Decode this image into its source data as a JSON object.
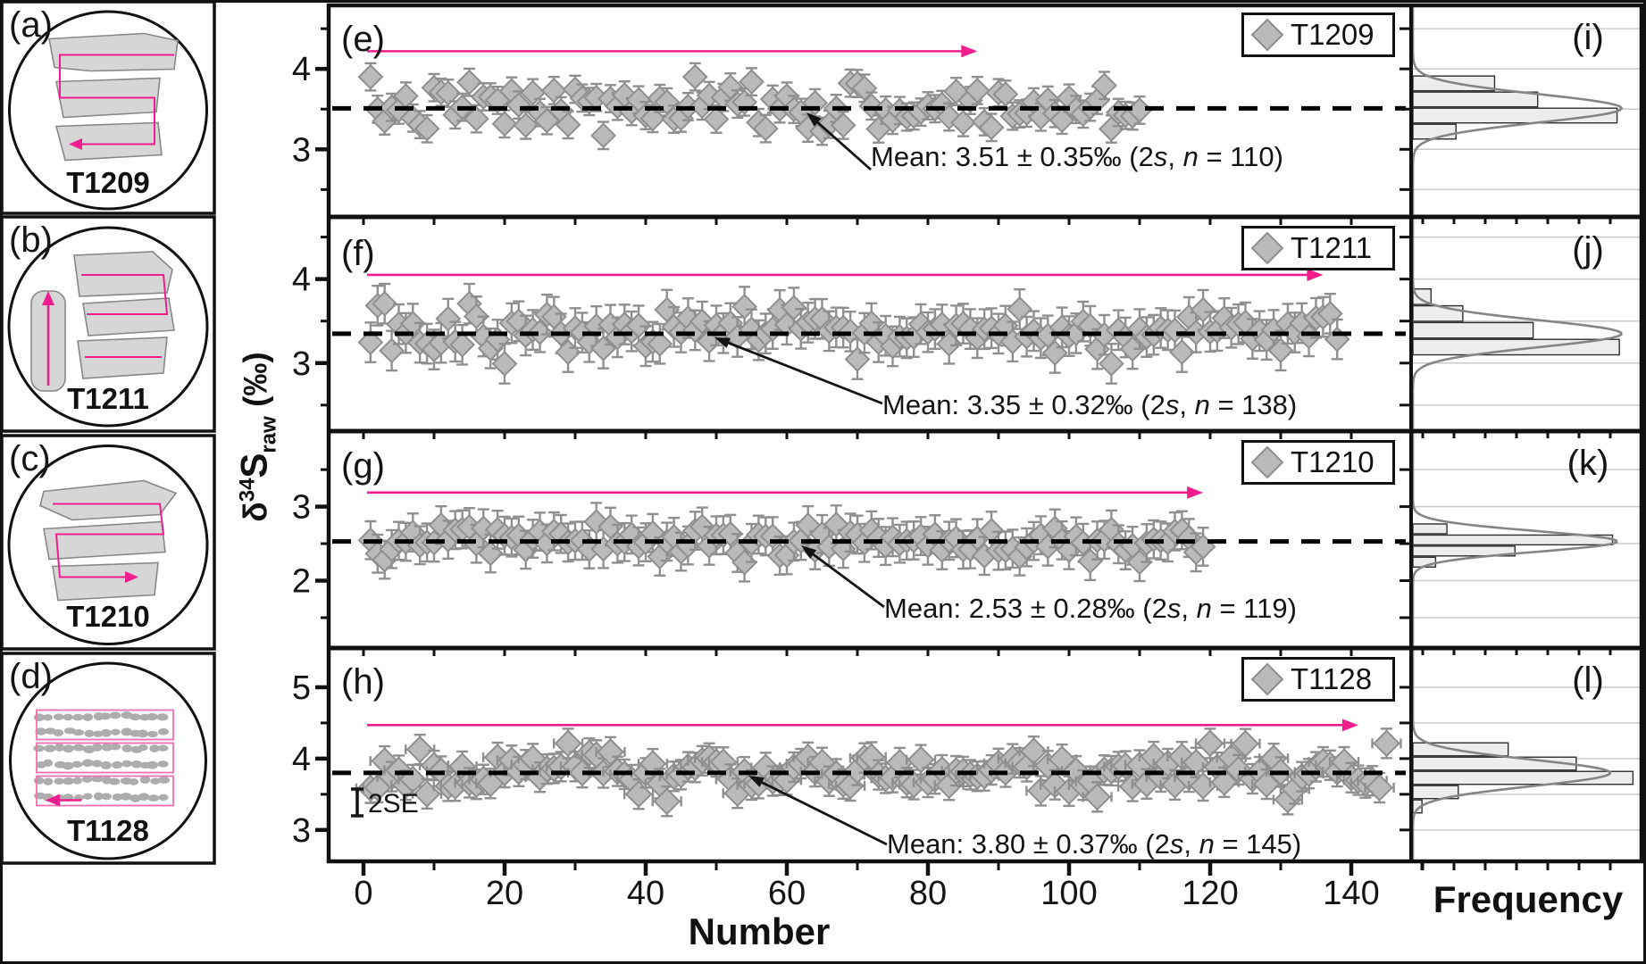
{
  "figure": {
    "x_axis_label": "Number",
    "hist_axis_label": "Frequency",
    "se_label": "2SE",
    "y_axis_label": {
      "delta": "δ",
      "mass": "34",
      "element": "S",
      "subscript": "raw",
      "unit": "(‰)"
    },
    "colors": {
      "accent_pink": "#f01e8c",
      "soft_pink": "#f46fb1",
      "marker_fill": "#bababa",
      "marker_stroke": "#8f8f8f",
      "bar_fill": "#ededed",
      "bar_stroke": "#2f2f2f",
      "curve_gray": "#858585",
      "grid_gray": "#c9c9c9",
      "dashed_black": "#000000",
      "slab_fill": "#d6d6d6",
      "slab_stroke": "#888888",
      "grain_fill": "#adadad"
    }
  },
  "specimens": [
    {
      "letter": "(a)",
      "name": "T1209"
    },
    {
      "letter": "(b)",
      "name": "T1211"
    },
    {
      "letter": "(c)",
      "name": "T1210"
    },
    {
      "letter": "(d)",
      "name": "T1128"
    }
  ],
  "x_axis": {
    "label": "Number",
    "ticks": [
      0,
      20,
      40,
      60,
      80,
      100,
      120,
      140
    ],
    "minor_step": 10
  },
  "chart_data": [
    {
      "type": "scatter+histogram",
      "panel_label": "(e)",
      "hist_label": "(i)",
      "series": "T1209",
      "mean": 3.51,
      "two_s": 0.35,
      "n": 110,
      "mean_annotation": "Mean: 3.51 ± 0.35‰ (2s, n = 110)",
      "ylim": [
        2.16,
        4.79
      ],
      "yticks": [
        3,
        4
      ],
      "yticks_minor": [
        2.5,
        3.5,
        4.5
      ],
      "guide_value": 4.22,
      "guide_span": [
        0.5,
        87
      ],
      "hist_bin": 0.2,
      "hist_bars": [
        {
          "value": 3.82,
          "frac": 0.36
        },
        {
          "value": 3.62,
          "frac": 0.55
        },
        {
          "value": 3.42,
          "frac": 0.9
        },
        {
          "value": 3.22,
          "frac": 0.19
        }
      ],
      "curve_sigma": 0.175,
      "curve_peak_frac": 0.92
    },
    {
      "type": "scatter+histogram",
      "panel_label": "(f)",
      "hist_label": "(j)",
      "series": "T1211",
      "mean": 3.35,
      "two_s": 0.32,
      "n": 138,
      "mean_annotation": "Mean: 3.35 ± 0.32‰ (2s, n = 138)",
      "ylim": [
        2.19,
        4.74
      ],
      "yticks": [
        3,
        4
      ],
      "yticks_minor": [
        2.5,
        3.5,
        4.5
      ],
      "guide_value": 4.05,
      "guide_span": [
        0.5,
        136
      ],
      "hist_bin": 0.2,
      "hist_bars": [
        {
          "value": 3.79,
          "frac": 0.08
        },
        {
          "value": 3.59,
          "frac": 0.22
        },
        {
          "value": 3.39,
          "frac": 0.53
        },
        {
          "value": 3.19,
          "frac": 0.91
        }
      ],
      "curve_sigma": 0.16,
      "curve_peak_frac": 0.92
    },
    {
      "type": "scatter+histogram",
      "panel_label": "(g)",
      "hist_label": "(k)",
      "series": "T1210",
      "mean": 2.53,
      "two_s": 0.28,
      "n": 119,
      "mean_annotation": "Mean: 2.53 ± 0.28‰ (2s, n = 119)",
      "ylim": [
        1.09,
        4.02
      ],
      "yticks": [
        2,
        3
      ],
      "yticks_minor": [
        1.5,
        2.5,
        3.5
      ],
      "guide_value": 3.19,
      "guide_span": [
        0.5,
        119
      ],
      "hist_bin": 0.15,
      "hist_bars": [
        {
          "value": 2.7,
          "frac": 0.15
        },
        {
          "value": 2.55,
          "frac": 0.88
        },
        {
          "value": 2.4,
          "frac": 0.45
        },
        {
          "value": 2.25,
          "frac": 0.1
        }
      ],
      "curve_sigma": 0.14,
      "curve_peak_frac": 0.9
    },
    {
      "type": "scatter+histogram",
      "panel_label": "(h)",
      "hist_label": "(l)",
      "series": "T1128",
      "mean": 3.8,
      "two_s": 0.37,
      "n": 145,
      "mean_annotation": "Mean: 3.80 ± 0.37‰ (2s, n = 145)",
      "ylim": [
        2.56,
        5.55
      ],
      "yticks": [
        3,
        4,
        5
      ],
      "yticks_minor": [
        3.5,
        4.5
      ],
      "guide_value": 4.47,
      "guide_span": [
        0.5,
        141
      ],
      "hist_bin": 0.2,
      "hist_bars": [
        {
          "value": 4.13,
          "frac": 0.42
        },
        {
          "value": 3.93,
          "frac": 0.72
        },
        {
          "value": 3.73,
          "frac": 0.97
        },
        {
          "value": 3.53,
          "frac": 0.2
        },
        {
          "value": 3.33,
          "frac": 0.04
        }
      ],
      "curve_sigma": 0.185,
      "curve_peak_frac": 0.87
    }
  ]
}
